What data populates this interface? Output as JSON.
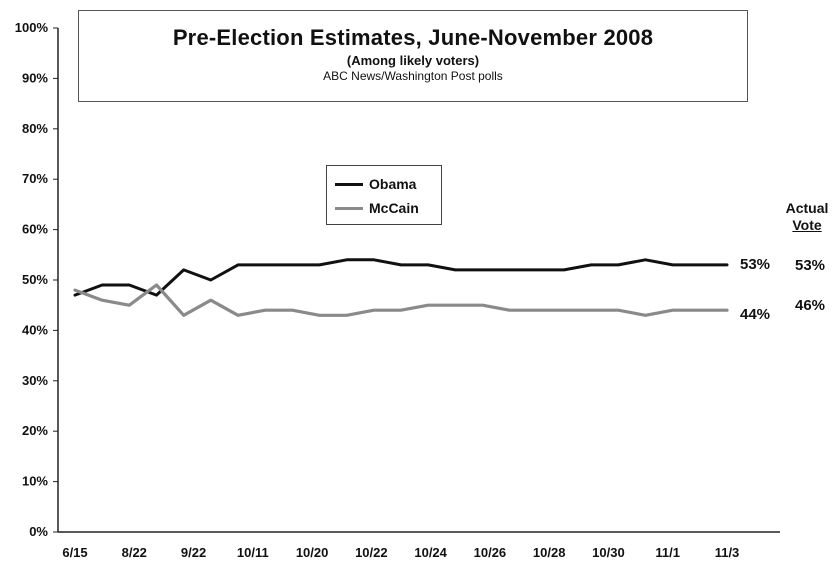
{
  "chart_data": {
    "type": "line",
    "title": "Pre-Election Estimates, June-November 2008",
    "subtitle": "(Among likely voters)",
    "source": "ABC News/Washington Post polls",
    "x_tick_labels": [
      "6/15",
      "8/22",
      "9/22",
      "10/11",
      "10/20",
      "10/22",
      "10/24",
      "10/26",
      "10/28",
      "10/30",
      "11/1",
      "11/3"
    ],
    "x_points": 25,
    "y_ticks": [
      "0%",
      "10%",
      "20%",
      "30%",
      "40%",
      "50%",
      "60%",
      "70%",
      "80%",
      "90%",
      "100%"
    ],
    "ylim": [
      0,
      100
    ],
    "grid": false,
    "legend_position": "center",
    "series": [
      {
        "name": "Obama",
        "color": "#111111",
        "values": [
          47,
          49,
          49,
          47,
          52,
          50,
          53,
          53,
          53,
          53,
          54,
          54,
          53,
          53,
          52,
          52,
          52,
          52,
          52,
          53,
          53,
          54,
          53,
          53,
          53
        ],
        "end_label": "53%"
      },
      {
        "name": "McCain",
        "color": "#8a8a8a",
        "values": [
          48,
          46,
          45,
          49,
          43,
          46,
          43,
          44,
          44,
          43,
          43,
          44,
          44,
          45,
          45,
          45,
          44,
          44,
          44,
          44,
          44,
          43,
          44,
          44,
          44
        ],
        "end_label": "44%"
      }
    ],
    "actual_vote": {
      "heading_1": "Actual",
      "heading_2": "Vote",
      "obama": "53%",
      "mccain": "46%"
    }
  }
}
